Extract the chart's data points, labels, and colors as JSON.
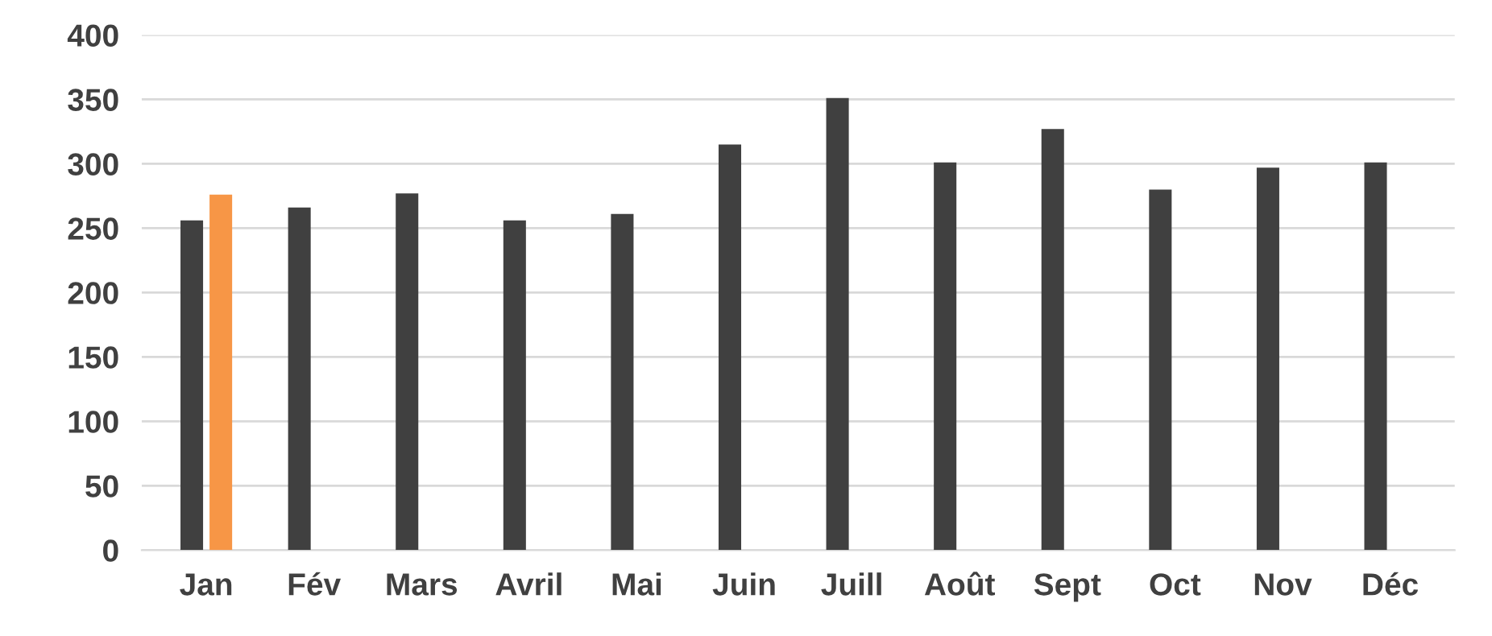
{
  "chart_data": {
    "type": "bar",
    "categories": [
      "Jan",
      "Fév",
      "Mars",
      "Avril",
      "Mai",
      "Juin",
      "Juill",
      "Août",
      "Sept",
      "Oct",
      "Nov",
      "Déc"
    ],
    "series": [
      {
        "color": "#404040",
        "values": [
          256,
          266,
          277,
          256,
          261,
          315,
          351,
          301,
          327,
          280,
          297,
          301
        ]
      },
      {
        "color": "#f79646",
        "values": [
          276,
          null,
          null,
          null,
          null,
          null,
          null,
          null,
          null,
          null,
          null,
          null
        ]
      }
    ],
    "ylim": [
      0,
      400
    ],
    "yticks": [
      0,
      50,
      100,
      150,
      200,
      250,
      300,
      350,
      400
    ],
    "grid": "y"
  }
}
